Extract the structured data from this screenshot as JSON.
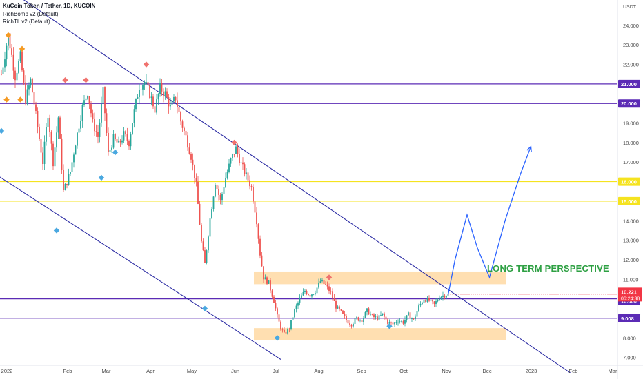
{
  "header": {
    "title": "KuCoin Token / Tether, 1D, KUCOIN",
    "indicator1": "RichBomb v2 (Default)",
    "indicator2": "RichTL v2 (Default)"
  },
  "annotation": "LONG TERM PERSPECTIVE",
  "chart_data": {
    "type": "candlestick",
    "currency": "USDT",
    "y_range": [
      6.6,
      25.3
    ],
    "y_ticks": [
      "24.000",
      "23.000",
      "22.000",
      "21.000",
      "20.000",
      "19.000",
      "18.000",
      "17.000",
      "16.000",
      "15.000",
      "14.000",
      "13.000",
      "12.000",
      "11.000",
      "10.000",
      "9.000",
      "8.000",
      "7.000"
    ],
    "x_ticks": [
      "2022",
      "Feb",
      "Mar",
      "Apr",
      "May",
      "Jun",
      "Jul",
      "Aug",
      "Sep",
      "Oct",
      "Nov",
      "Dec",
      "2023",
      "Feb",
      "Mar"
    ],
    "horizontal_levels": [
      {
        "value": 21.0,
        "label": "21.000",
        "color": "#5b2bb5"
      },
      {
        "value": 20.0,
        "label": "20.000",
        "color": "#5b2bb5"
      },
      {
        "value": 16.0,
        "label": "16.000",
        "color": "#f5e31f"
      },
      {
        "value": 15.0,
        "label": "15.000",
        "color": "#f5e31f"
      },
      {
        "value": 10.0,
        "label": "10.000",
        "color": "#5b2bb5"
      },
      {
        "value": 9.008,
        "label": "9.008",
        "color": "#5b2bb5"
      }
    ],
    "last_price": {
      "value": 10.221,
      "label": "10.221",
      "countdown": "06:24:38",
      "color": "#f23645"
    },
    "zones": [
      {
        "from": 10.75,
        "to": 11.4
      },
      {
        "from": 7.9,
        "to": 8.5
      }
    ],
    "colors": {
      "up": "#26a69a",
      "down": "#ef5350",
      "channel": "#2f2fa5",
      "projection": "#2962ff",
      "zone": "#ffd9a3",
      "signal_buy": "#4aa8e0",
      "signal_sell_red": "#f0726e",
      "signal_sell_orange": "#f59a23"
    },
    "anchors": [
      [
        0,
        21.5
      ],
      [
        4,
        23.5
      ],
      [
        8,
        21.4
      ],
      [
        11,
        22.4
      ],
      [
        14,
        20.2
      ],
      [
        17,
        21.2
      ],
      [
        20,
        19.4
      ],
      [
        24,
        17.0
      ],
      [
        27,
        19.5
      ],
      [
        30,
        17.0
      ],
      [
        33,
        19.3
      ],
      [
        36,
        15.5
      ],
      [
        40,
        16.5
      ],
      [
        43,
        18.0
      ],
      [
        47,
        19.8
      ],
      [
        50,
        20.6
      ],
      [
        53,
        19.0
      ],
      [
        56,
        18.3
      ],
      [
        59,
        20.6
      ],
      [
        62,
        17.4
      ],
      [
        65,
        18.2
      ],
      [
        68,
        17.9
      ],
      [
        71,
        18.4
      ],
      [
        74,
        18.0
      ],
      [
        77,
        19.6
      ],
      [
        80,
        20.9
      ],
      [
        83,
        21.1
      ],
      [
        86,
        20.5
      ],
      [
        89,
        19.7
      ],
      [
        92,
        20.8
      ],
      [
        95,
        20.5
      ],
      [
        98,
        19.8
      ],
      [
        101,
        20.3
      ],
      [
        104,
        19.1
      ],
      [
        107,
        18.3
      ],
      [
        110,
        17.3
      ],
      [
        113,
        15.8
      ],
      [
        116,
        12.9
      ],
      [
        118,
        11.8
      ],
      [
        121,
        14.1
      ],
      [
        124,
        16.0
      ],
      [
        127,
        15.0
      ],
      [
        130,
        16.2
      ],
      [
        133,
        17.1
      ],
      [
        136,
        17.7
      ],
      [
        139,
        16.9
      ],
      [
        142,
        16.3
      ],
      [
        145,
        15.7
      ],
      [
        148,
        14.0
      ],
      [
        150,
        12.3
      ],
      [
        152,
        11.1
      ],
      [
        155,
        10.8
      ],
      [
        158,
        9.9
      ],
      [
        160,
        9.1
      ],
      [
        162,
        8.5
      ],
      [
        164,
        8.2
      ],
      [
        167,
        8.5
      ],
      [
        170,
        9.4
      ],
      [
        173,
        10.0
      ],
      [
        176,
        10.4
      ],
      [
        179,
        10.2
      ],
      [
        182,
        10.4
      ],
      [
        185,
        10.9
      ],
      [
        188,
        10.7
      ],
      [
        191,
        10.3
      ],
      [
        194,
        9.6
      ],
      [
        197,
        9.3
      ],
      [
        200,
        8.9
      ],
      [
        203,
        8.7
      ],
      [
        206,
        9.0
      ],
      [
        209,
        8.9
      ],
      [
        212,
        9.4
      ],
      [
        215,
        9.1
      ],
      [
        218,
        9.0
      ],
      [
        221,
        9.2
      ],
      [
        224,
        8.8
      ],
      [
        227,
        8.7
      ],
      [
        230,
        8.9
      ],
      [
        233,
        8.8
      ],
      [
        236,
        9.2
      ],
      [
        239,
        8.9
      ],
      [
        242,
        9.6
      ],
      [
        245,
        10.0
      ],
      [
        248,
        9.9
      ],
      [
        251,
        9.7
      ],
      [
        254,
        10.1
      ],
      [
        257,
        10.2
      ],
      [
        259,
        10.22
      ]
    ],
    "signals": [
      {
        "type": "sell_orange",
        "day": 4,
        "price": 23.5
      },
      {
        "type": "sell_orange",
        "day": 12,
        "price": 22.8
      },
      {
        "type": "buy_orange",
        "day": 3,
        "price": 20.2
      },
      {
        "type": "buy_orange",
        "day": 11,
        "price": 20.2
      },
      {
        "type": "sell_red",
        "day": 37,
        "price": 21.2
      },
      {
        "type": "sell_red",
        "day": 49,
        "price": 21.2
      },
      {
        "type": "sell_red",
        "day": 84,
        "price": 22.0
      },
      {
        "type": "sell_red",
        "day": 135,
        "price": 18.0
      },
      {
        "type": "sell_red",
        "day": 190,
        "price": 11.1
      },
      {
        "type": "buy",
        "day": 0,
        "price": 18.6
      },
      {
        "type": "buy",
        "day": 32,
        "price": 13.5
      },
      {
        "type": "buy",
        "day": 58,
        "price": 16.2
      },
      {
        "type": "buy",
        "day": 66,
        "price": 17.5
      },
      {
        "type": "buy",
        "day": 118,
        "price": 9.5
      },
      {
        "type": "buy",
        "day": 160,
        "price": 8.0
      },
      {
        "type": "buy",
        "day": 225,
        "price": 8.6
      }
    ]
  }
}
